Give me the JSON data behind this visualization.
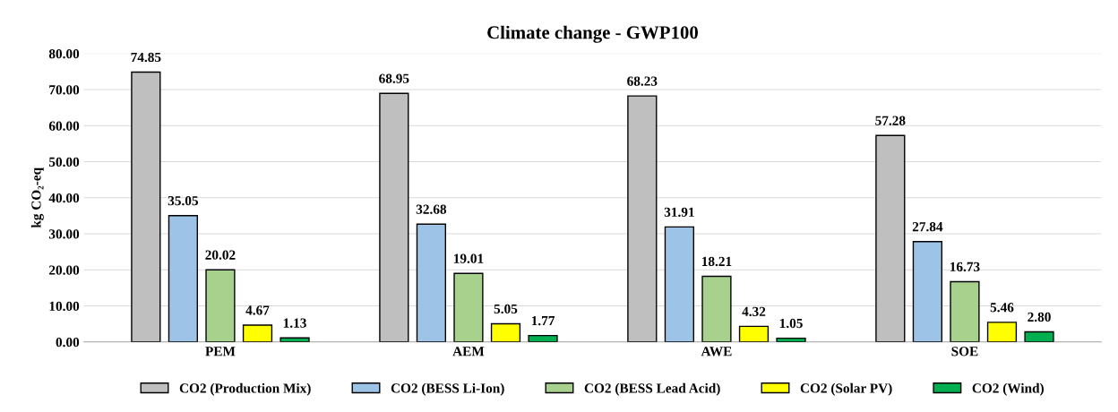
{
  "chart_data": {
    "type": "bar",
    "title": "Climate change - GWP100",
    "ylabel": "kg CO₂-eq",
    "categories": [
      "PEM",
      "AEM",
      "AWE",
      "SOE"
    ],
    "series": [
      {
        "name": "CO2 (Production Mix)",
        "color": "#bfbfbf",
        "values": [
          74.85,
          68.95,
          68.23,
          57.28
        ],
        "value_labels": [
          "74.85",
          "68.95",
          "68.23",
          "57.28"
        ]
      },
      {
        "name": "CO2 (BESS Li-Ion)",
        "color": "#9dc3e6",
        "values": [
          35.05,
          32.68,
          31.91,
          27.84
        ],
        "value_labels": [
          "35.05",
          "32.68",
          "31.91",
          "27.84"
        ]
      },
      {
        "name": "CO2 (BESS Lead Acid)",
        "color": "#a9d18e",
        "values": [
          20.02,
          19.01,
          18.21,
          16.73
        ],
        "value_labels": [
          "20.02",
          "19.01",
          "18.21",
          "16.73"
        ]
      },
      {
        "name": "CO2 (Solar PV)",
        "color": "#ffff00",
        "values": [
          4.67,
          5.05,
          4.32,
          5.46
        ],
        "value_labels": [
          "4.67",
          "5.05",
          "4.32",
          "5.46"
        ]
      },
      {
        "name": "CO2 (Wind)",
        "color": "#00b050",
        "values": [
          1.13,
          1.77,
          1.05,
          2.8
        ],
        "value_labels": [
          "1.13",
          "1.77",
          "1.05",
          "2.80"
        ]
      }
    ],
    "ylim": [
      0,
      80
    ],
    "yticks": [
      {
        "value": 0,
        "label": "0.00"
      },
      {
        "value": 10,
        "label": "10.00"
      },
      {
        "value": 20,
        "label": "20.00"
      },
      {
        "value": 30,
        "label": "30.00"
      },
      {
        "value": 40,
        "label": "40.00"
      },
      {
        "value": 50,
        "label": "50.00"
      },
      {
        "value": 60,
        "label": "60.00"
      },
      {
        "value": 70,
        "label": "70.00"
      },
      {
        "value": 80,
        "label": "80.00"
      }
    ],
    "grid": "y",
    "legend": "bottom"
  }
}
